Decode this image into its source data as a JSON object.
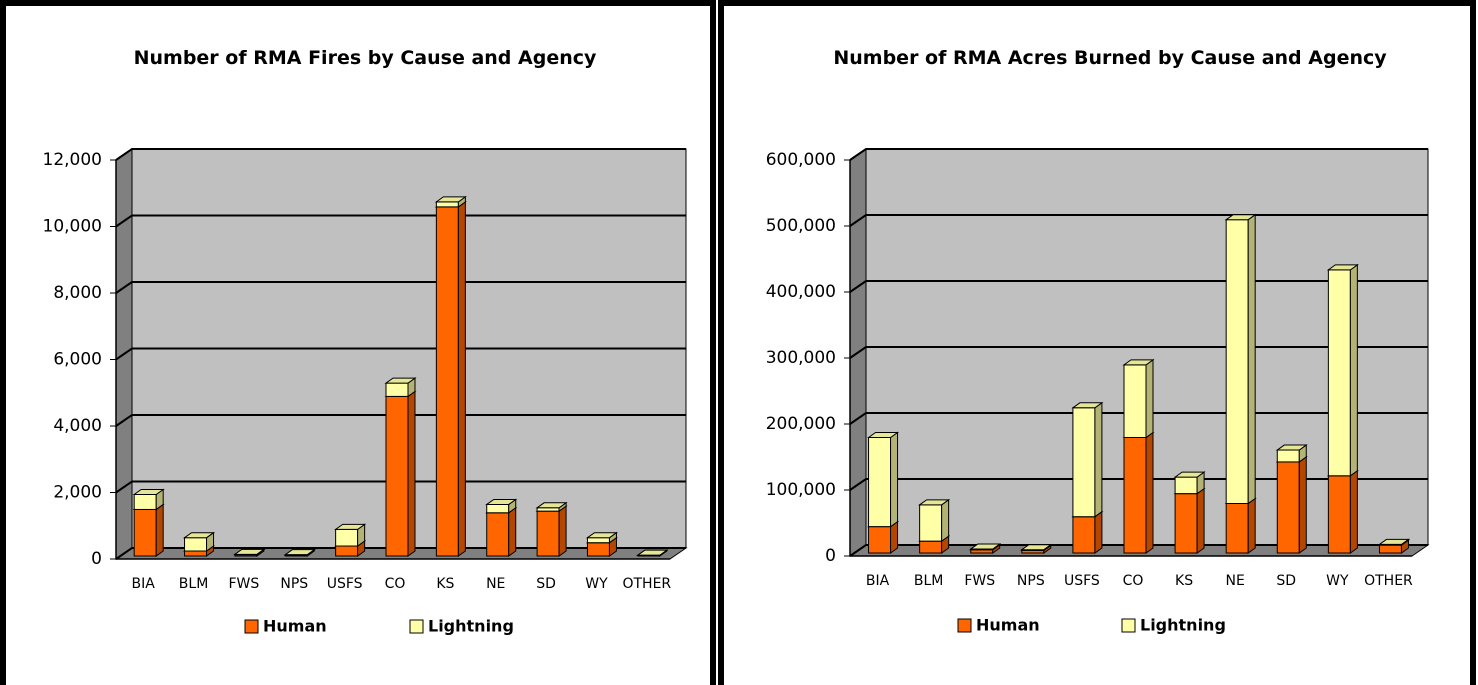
{
  "chart_data": [
    {
      "type": "bar",
      "stacked": true,
      "title": "Number of RMA Fires by Cause and Agency",
      "categories": [
        "BIA",
        "BLM",
        "FWS",
        "NPS",
        "USFS",
        "CO",
        "KS",
        "NE",
        "SD",
        "WY",
        "OTHER"
      ],
      "series": [
        {
          "name": "Human",
          "color": "#ff6600",
          "values": [
            1400,
            150,
            40,
            30,
            300,
            4800,
            10500,
            1300,
            1350,
            400,
            20
          ]
        },
        {
          "name": "Lightning",
          "color": "#ffffa8",
          "values": [
            450,
            400,
            10,
            10,
            500,
            400,
            150,
            250,
            100,
            150,
            5
          ]
        }
      ],
      "ylim": [
        0,
        12000
      ],
      "yticks": [
        0,
        {
          "value": 2000,
          "label": "2,000"
        },
        {
          "value": 4000,
          "label": "4,000"
        },
        {
          "value": 6000,
          "label": "6,000"
        },
        {
          "value": 8000,
          "label": "8,000"
        },
        {
          "value": 10000,
          "label": "10,000"
        },
        {
          "value": 12000,
          "label": "12,000"
        }
      ],
      "grid": true,
      "legend": "bottom"
    },
    {
      "type": "bar",
      "stacked": true,
      "title": "Number of RMA Acres Burned by Cause and Agency",
      "categories": [
        "BIA",
        "BLM",
        "FWS",
        "NPS",
        "USFS",
        "CO",
        "KS",
        "NE",
        "SD",
        "WY",
        "OTHER"
      ],
      "series": [
        {
          "name": "Human",
          "color": "#ff6600",
          "values": [
            40000,
            18000,
            5000,
            4000,
            55000,
            175000,
            90000,
            75000,
            138000,
            117000,
            12000
          ]
        },
        {
          "name": "Lightning",
          "color": "#ffffa8",
          "values": [
            135000,
            55000,
            1000,
            1000,
            165000,
            110000,
            25000,
            430000,
            18000,
            312000,
            1000
          ]
        }
      ],
      "ylim": [
        0,
        600000
      ],
      "yticks": [
        0,
        {
          "value": 100000,
          "label": "100,000"
        },
        {
          "value": 200000,
          "label": "200,000"
        },
        {
          "value": 300000,
          "label": "300,000"
        },
        {
          "value": 400000,
          "label": "400,000"
        },
        {
          "value": 500000,
          "label": "500,000"
        },
        {
          "value": 600000,
          "label": "600,000"
        }
      ],
      "grid": true,
      "legend": "bottom"
    }
  ]
}
